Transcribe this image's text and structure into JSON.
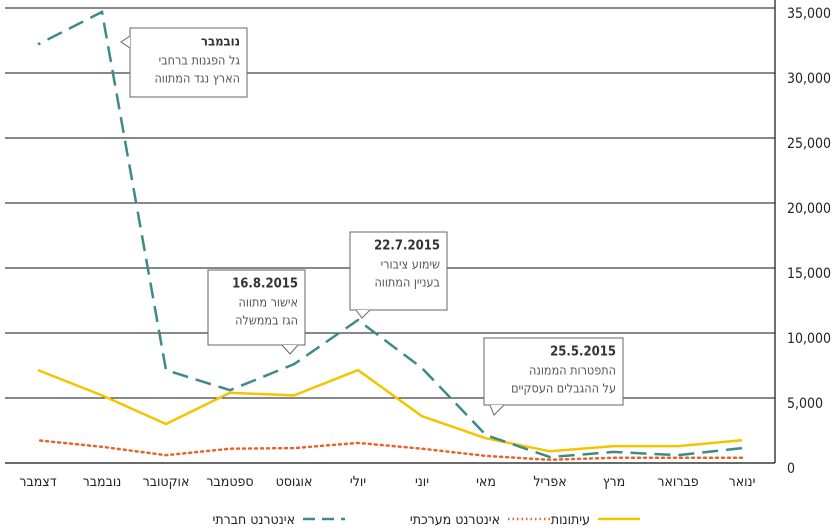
{
  "chart_data": {
    "type": "line",
    "categories": [
      "ינואר",
      "פברואר",
      "מרץ",
      "אפריל",
      "מאי",
      "יוני",
      "יולי",
      "אוגוסט",
      "ספטמבר",
      "אוקטובר",
      "נובמבר",
      "דצמבר"
    ],
    "series": [
      {
        "name": "עיתונות",
        "color": "#f5c400",
        "style": "solid",
        "values": [
          1750,
          1300,
          1300,
          900,
          1900,
          3600,
          7150,
          5200,
          5400,
          3000,
          5200,
          7150
        ]
      },
      {
        "name": "אינטרנט מערכתי",
        "color": "#e8632a",
        "style": "dotted",
        "values": [
          400,
          400,
          400,
          250,
          550,
          1100,
          1550,
          1150,
          1100,
          600,
          1250,
          1750
        ]
      },
      {
        "name": "אינטרנט חברתי",
        "color": "#3d8a8a",
        "style": "dashed",
        "values": [
          1150,
          600,
          850,
          450,
          2150,
          7300,
          11000,
          7600,
          5600,
          7150,
          34700,
          32200
        ]
      }
    ],
    "ylim": [
      0,
      35000
    ],
    "yticks": [
      0,
      {
        "value": 5000,
        "label": "5,000"
      },
      {
        "value": 10000,
        "label": "10,000"
      },
      {
        "value": 15000,
        "label": "15,000"
      },
      {
        "value": 20000,
        "label": "20,000"
      },
      {
        "value": 25000,
        "label": "25,000"
      },
      {
        "value": 30000,
        "label": "30,000"
      },
      {
        "value": 35000,
        "label": "35,000"
      }
    ],
    "grid": true,
    "annotations": [
      {
        "title": "נובמבר",
        "lines": [
          "גל הפגנות ברחבי",
          "הארץ נגד המתווה"
        ]
      },
      {
        "title": "16.8.2015",
        "lines": [
          "אישור מתווה",
          "הגז בממשלה"
        ]
      },
      {
        "title": "22.7.2015",
        "lines": [
          "שימוע ציבורי",
          "בעניין המתווה"
        ]
      },
      {
        "title": "25.5.2015",
        "lines": [
          "התפטרות הממונה",
          "על ההגבלים העסקיים"
        ]
      }
    ]
  }
}
